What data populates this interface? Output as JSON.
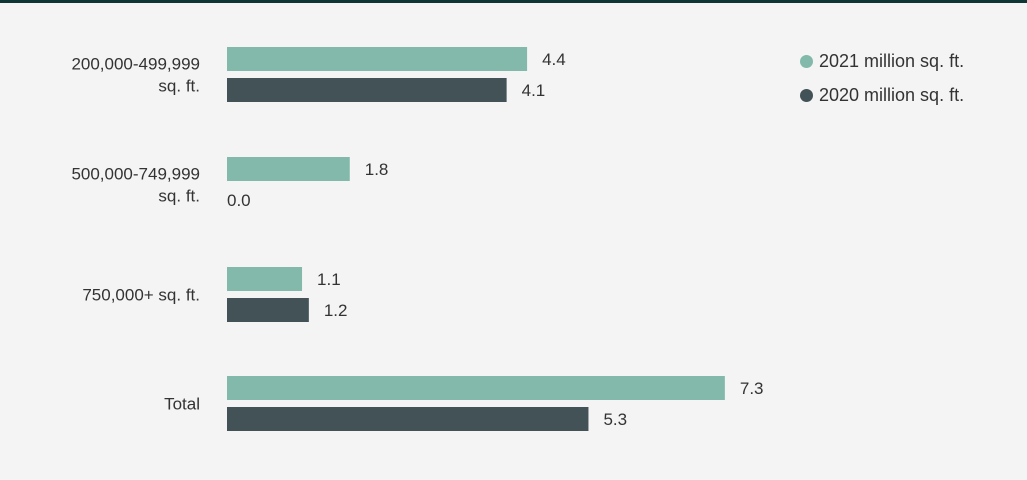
{
  "chart_data": {
    "type": "bar",
    "orientation": "horizontal",
    "categories": [
      [
        "200,000-499,999",
        "sq. ft."
      ],
      [
        "500,000-749,999",
        "sq. ft."
      ],
      [
        "750,000+ sq. ft."
      ],
      [
        "Total"
      ]
    ],
    "series": [
      {
        "name": "2021 million sq. ft.",
        "color": "#82b9ab",
        "values": [
          4.4,
          1.8,
          1.1,
          7.3
        ],
        "labels": [
          "4.4",
          "1.8",
          "1.1",
          "7.3"
        ]
      },
      {
        "name": "2020 million sq. ft.",
        "color": "#435257",
        "values": [
          4.1,
          0.0,
          1.2,
          5.3
        ],
        "labels": [
          "4.1",
          "0.0",
          "1.2",
          "5.3"
        ]
      }
    ],
    "xlim": [
      0,
      8
    ],
    "legend_position": "top-right",
    "grid": false
  }
}
